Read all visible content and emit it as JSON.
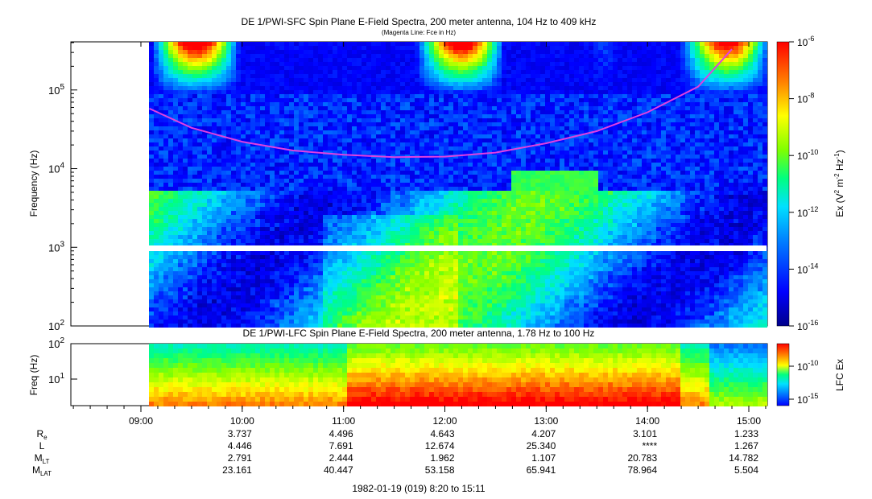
{
  "chart_data": [
    {
      "type": "heatmap",
      "title": "DE 1/PWI-SFC  Spin Plane E-Field Spectra, 200 meter antenna, 104 Hz to 409 kHz",
      "subtitle": "(Magenta Line: Fce in Hz)",
      "ylabel": "Frequency (Hz)",
      "yscale": "log",
      "ylim": [
        100,
        409000
      ],
      "yticks": [
        "10^2",
        "10^3",
        "10^4",
        "10^5"
      ],
      "colorbar": {
        "label": "Ex (V^2 m^-2 Hz^-1)",
        "scale": "log",
        "range": [
          1e-16,
          1e-06
        ],
        "ticks": [
          "10^-6",
          "10^-8",
          "10^-10",
          "10^-12",
          "10^-14",
          "10^-16"
        ]
      },
      "series": [
        {
          "name": "Fce",
          "color": "#e040e0",
          "time": [
            "09:05",
            "09:30",
            "10:00",
            "10:30",
            "11:00",
            "11:30",
            "12:00",
            "12:30",
            "13:00",
            "13:30",
            "14:00",
            "14:30",
            "14:50"
          ],
          "values": [
            58000,
            33000,
            22000,
            17000,
            15000,
            14000,
            14200,
            16000,
            21000,
            30000,
            52000,
            110000,
            330000
          ]
        }
      ]
    },
    {
      "type": "heatmap",
      "title": "DE 1/PWI-LFC  Spin Plane E-Field Spectra, 200 meter antenna, 1.78 Hz to 100 Hz",
      "ylabel": "Freq (Hz)",
      "yscale": "log",
      "ylim": [
        1.78,
        100
      ],
      "yticks": [
        "10^1",
        "10^2"
      ],
      "colorbar": {
        "label": "LFC Ex",
        "scale": "log",
        "ticks": [
          "10^-10",
          "10^-15"
        ]
      }
    }
  ],
  "time_axis": {
    "ticks": [
      "09:00",
      "10:00",
      "11:00",
      "12:00",
      "13:00",
      "14:00",
      "15:00"
    ],
    "date_label": "1982-01-19 (019) 8:20 to 15:11"
  },
  "ephemeris": [
    {
      "label": "R",
      "sub": "e",
      "values": [
        "3.737",
        "4.496",
        "4.643",
        "4.207",
        "3.101",
        "1.233"
      ]
    },
    {
      "label": "L",
      "sub": "",
      "values": [
        "4.446",
        "7.691",
        "12.674",
        "25.340",
        "****",
        "1.267"
      ]
    },
    {
      "label": "M",
      "sub": "LT",
      "values": [
        "2.791",
        "2.444",
        "1.962",
        "1.107",
        "20.783",
        "14.782"
      ]
    },
    {
      "label": "M",
      "sub": "LAT",
      "values": [
        "23.161",
        "40.447",
        "53.158",
        "65.941",
        "78.964",
        "5.504"
      ]
    }
  ],
  "colors": {
    "fce_line": "#e040e0",
    "colormap": [
      "#00008a",
      "#0000ff",
      "#0080ff",
      "#00e0ff",
      "#00ff80",
      "#80ff00",
      "#ffff00",
      "#ff8000",
      "#ff0000"
    ]
  }
}
